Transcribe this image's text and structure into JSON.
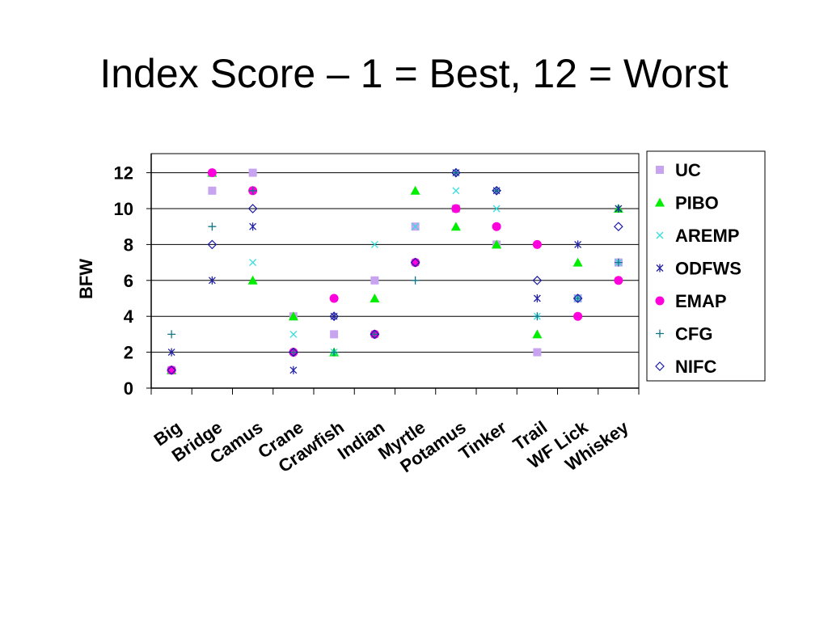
{
  "slide": {
    "title": "Index Score – 1 = Best, 12 = Worst"
  },
  "chart_data": {
    "type": "scatter",
    "categories": [
      "Big",
      "Bridge",
      "Camus",
      "Crane",
      "Crawfish",
      "Indian",
      "Myrtle",
      "Potamus",
      "Tinker",
      "Trail",
      "WF Lick",
      "Whiskey"
    ],
    "ylabel": "BFW",
    "xlabel": "",
    "ylim": [
      0,
      13
    ],
    "yticks": [
      0,
      2,
      4,
      6,
      8,
      10,
      12
    ],
    "grid": true,
    "legend_position": "right",
    "series": [
      {
        "name": "UC",
        "marker": "square",
        "color": "#c7a3f0",
        "values": [
          1,
          11,
          12,
          4,
          3,
          6,
          9,
          10,
          8,
          2,
          5,
          7
        ]
      },
      {
        "name": "PIBO",
        "marker": "triangle",
        "color": "#00ee00",
        "values": [
          1,
          12,
          6,
          4,
          2,
          5,
          11,
          9,
          8,
          3,
          7,
          10
        ]
      },
      {
        "name": "AREMP",
        "marker": "x",
        "color": "#33dddd",
        "values": [
          1,
          12,
          7,
          3,
          2,
          8,
          9,
          11,
          10,
          4,
          5,
          7
        ]
      },
      {
        "name": "ODFWS",
        "marker": "star",
        "color": "#2222aa",
        "values": [
          2,
          6,
          9,
          1,
          4,
          3,
          7,
          12,
          11,
          5,
          8,
          10
        ]
      },
      {
        "name": "EMAP",
        "marker": "circle",
        "color": "#ff00dd",
        "values": [
          1,
          12,
          11,
          2,
          5,
          3,
          7,
          10,
          9,
          8,
          4,
          6
        ]
      },
      {
        "name": "CFG",
        "marker": "plus",
        "color": "#117788",
        "values": [
          3,
          9,
          11,
          2,
          2,
          3,
          6,
          12,
          11,
          4,
          5,
          7
        ]
      },
      {
        "name": "NIFC",
        "marker": "diamond",
        "color": "#1a1aaa",
        "values": [
          1,
          8,
          10,
          2,
          4,
          3,
          7,
          12,
          11,
          6,
          5,
          9
        ]
      }
    ]
  }
}
